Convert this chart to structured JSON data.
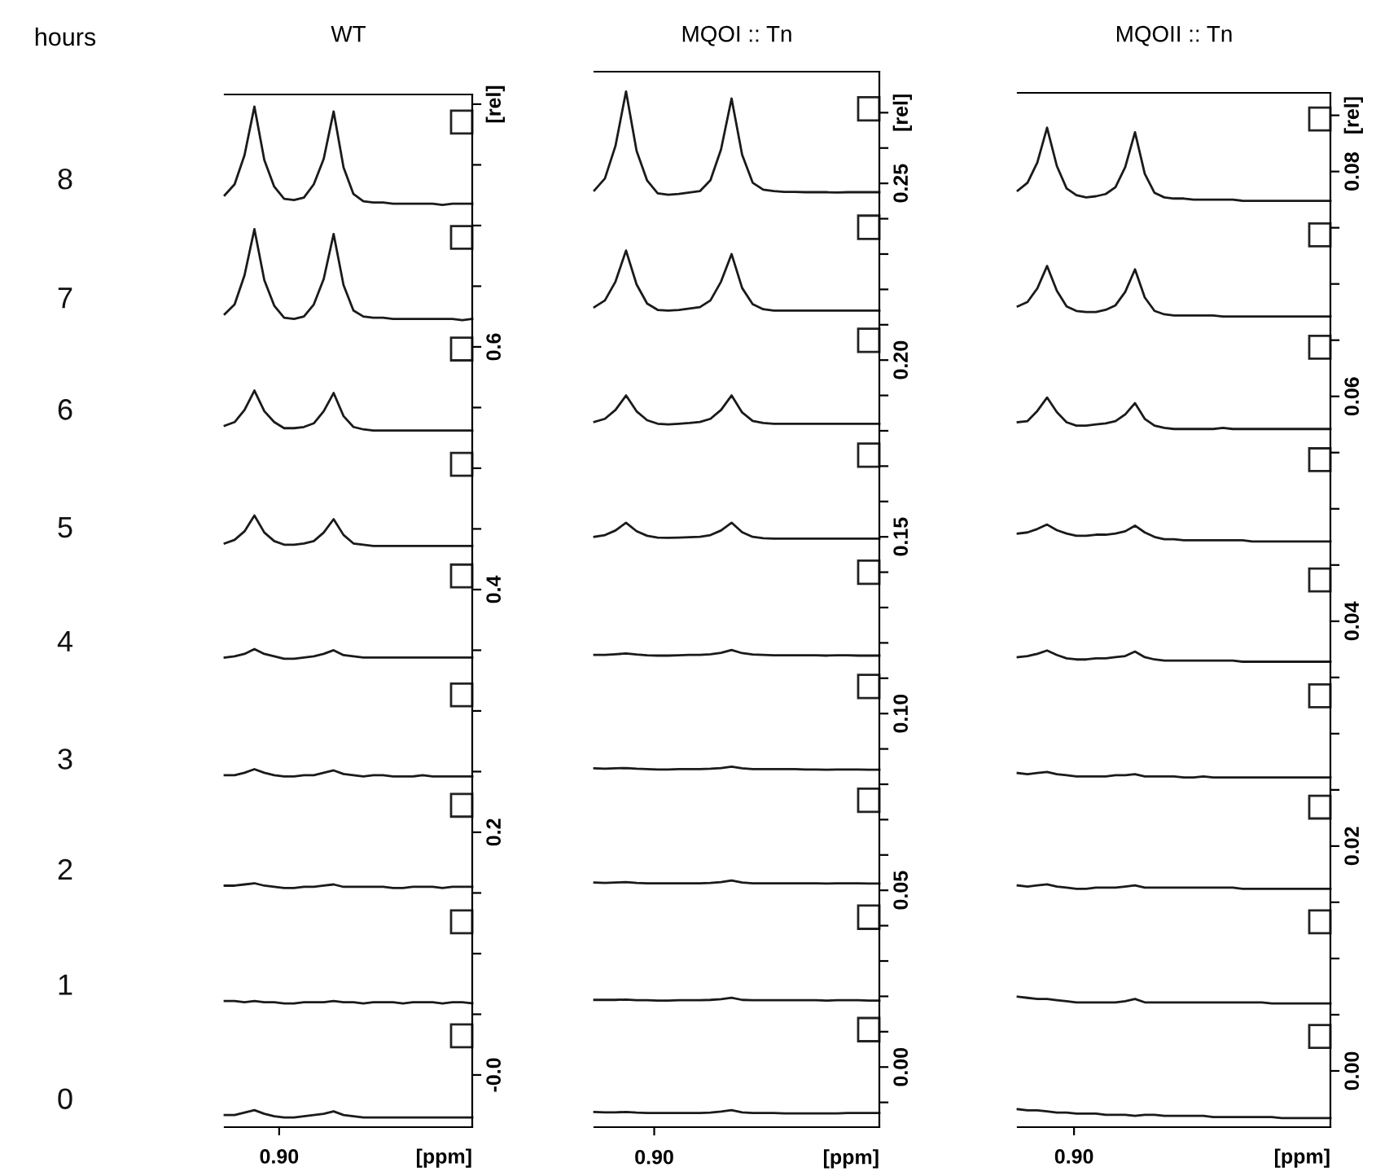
{
  "chart_data": [
    {
      "type": "line",
      "title": "WT",
      "xlabel": "[ppm]",
      "annotations": [
        "hours",
        "0.90",
        "8",
        "7",
        "6",
        "5",
        "4",
        "3",
        "2",
        "1",
        "0"
      ],
      "marker": "none",
      "line_style": "solid",
      "categories": [
        null,
        null,
        null,
        null,
        null,
        null,
        null,
        null,
        null,
        null,
        null,
        null,
        null,
        null,
        null,
        null,
        null,
        null,
        null,
        null,
        null,
        null,
        null,
        null,
        null,
        null
      ],
      "ylim": [
        -0.043,
        0.808
      ],
      "yticks": [
        {
          "value": 0,
          "label": "-0.0"
        },
        {
          "value": 0.05,
          "label": null
        },
        {
          "value": 0.1,
          "label": null
        },
        {
          "value": 0.15,
          "label": null
        },
        {
          "value": 0.2,
          "label": "0.2"
        },
        {
          "value": 0.25,
          "label": null
        },
        {
          "value": 0.3,
          "label": null
        },
        {
          "value": 0.35,
          "label": null
        },
        {
          "value": 0.4,
          "label": "0.4"
        },
        {
          "value": 0.45,
          "label": null
        },
        {
          "value": 0.5,
          "label": null
        },
        {
          "value": 0.55,
          "label": null
        },
        {
          "value": 0.6,
          "label": "0.6"
        },
        {
          "value": 0.65,
          "label": null
        },
        {
          "value": 0.7,
          "label": null
        },
        {
          "value": 0.75,
          "label": null
        },
        {
          "value": 0.8,
          "label": "[rel]"
        }
      ],
      "series": [
        {
          "color": "#1a1a1a",
          "values": [
            0.725,
            0.734,
            0.758,
            0.798,
            0.754,
            0.732,
            0.722,
            0.721,
            0.723,
            0.734,
            0.755,
            0.794,
            0.748,
            0.726,
            0.72,
            0.719,
            0.719,
            0.718,
            0.718,
            0.718,
            0.718,
            0.718,
            0.717,
            0.718,
            0.718,
            0.718
          ]
        },
        {
          "color": "#1a1a1a",
          "values": [
            0.627,
            0.635,
            0.659,
            0.697,
            0.655,
            0.634,
            0.624,
            0.623,
            0.625,
            0.635,
            0.656,
            0.693,
            0.651,
            0.63,
            0.625,
            0.624,
            0.624,
            0.623,
            0.623,
            0.623,
            0.623,
            0.623,
            0.623,
            0.623,
            0.622,
            0.623
          ]
        },
        {
          "color": "#1a1a1a",
          "values": [
            0.535,
            0.538,
            0.548,
            0.564,
            0.547,
            0.538,
            0.533,
            0.533,
            0.534,
            0.537,
            0.547,
            0.562,
            0.543,
            0.534,
            0.532,
            0.531,
            0.531,
            0.531,
            0.531,
            0.531,
            0.531,
            0.531,
            0.531,
            0.531,
            0.531,
            0.531
          ]
        },
        {
          "color": "#1a1a1a",
          "values": [
            0.438,
            0.441,
            0.448,
            0.461,
            0.447,
            0.44,
            0.437,
            0.437,
            0.438,
            0.44,
            0.447,
            0.458,
            0.445,
            0.438,
            0.437,
            0.436,
            0.436,
            0.436,
            0.436,
            0.436,
            0.436,
            0.436,
            0.436,
            0.436,
            0.436,
            0.436
          ]
        },
        {
          "color": "#1a1a1a",
          "values": [
            0.344,
            0.345,
            0.347,
            0.351,
            0.347,
            0.345,
            0.343,
            0.343,
            0.344,
            0.345,
            0.347,
            0.35,
            0.346,
            0.345,
            0.344,
            0.344,
            0.344,
            0.344,
            0.344,
            0.344,
            0.344,
            0.344,
            0.344,
            0.344,
            0.344,
            0.344
          ]
        },
        {
          "color": "#1a1a1a",
          "values": [
            0.247,
            0.247,
            0.249,
            0.252,
            0.249,
            0.247,
            0.246,
            0.246,
            0.247,
            0.247,
            0.249,
            0.251,
            0.248,
            0.247,
            0.246,
            0.247,
            0.247,
            0.246,
            0.246,
            0.246,
            0.247,
            0.246,
            0.246,
            0.246,
            0.246,
            0.246
          ]
        },
        {
          "color": "#1a1a1a",
          "values": [
            0.156,
            0.156,
            0.157,
            0.158,
            0.156,
            0.155,
            0.154,
            0.154,
            0.155,
            0.155,
            0.156,
            0.157,
            0.155,
            0.155,
            0.155,
            0.155,
            0.155,
            0.154,
            0.154,
            0.155,
            0.155,
            0.155,
            0.154,
            0.155,
            0.155,
            0.155
          ]
        },
        {
          "color": "#1a1a1a",
          "values": [
            0.061,
            0.061,
            0.06,
            0.061,
            0.06,
            0.06,
            0.059,
            0.059,
            0.06,
            0.06,
            0.06,
            0.061,
            0.06,
            0.06,
            0.059,
            0.06,
            0.06,
            0.06,
            0.059,
            0.06,
            0.06,
            0.06,
            0.059,
            0.06,
            0.06,
            0.059
          ]
        },
        {
          "color": "#1a1a1a",
          "values": [
            -0.033,
            -0.033,
            -0.031,
            -0.029,
            -0.032,
            -0.034,
            -0.035,
            -0.035,
            -0.034,
            -0.033,
            -0.032,
            -0.03,
            -0.033,
            -0.034,
            -0.035,
            -0.035,
            -0.035,
            -0.035,
            -0.035,
            -0.035,
            -0.035,
            -0.035,
            -0.035,
            -0.035,
            -0.035,
            -0.035
          ]
        }
      ]
    },
    {
      "type": "line",
      "title": "MQOI :: Tn",
      "xlabel": "[ppm]",
      "annotations": [
        "0.90"
      ],
      "marker": "none",
      "line_style": "solid",
      "categories": [
        null,
        null,
        null,
        null,
        null,
        null,
        null,
        null,
        null,
        null,
        null,
        null,
        null,
        null,
        null,
        null,
        null,
        null,
        null,
        null,
        null,
        null,
        null,
        null,
        null,
        null,
        null,
        null
      ],
      "ylim": [
        -0.017,
        0.2816
      ],
      "yticks": [
        {
          "value": -0.01,
          "label": null
        },
        {
          "value": 0.0,
          "label": "0.00"
        },
        {
          "value": 0.01,
          "label": null
        },
        {
          "value": 0.02,
          "label": null
        },
        {
          "value": 0.03,
          "label": null
        },
        {
          "value": 0.04,
          "label": null
        },
        {
          "value": 0.05,
          "label": "0.05"
        },
        {
          "value": 0.06,
          "label": null
        },
        {
          "value": 0.07,
          "label": null
        },
        {
          "value": 0.08,
          "label": null
        },
        {
          "value": 0.09,
          "label": null
        },
        {
          "value": 0.1,
          "label": "0.10"
        },
        {
          "value": 0.11,
          "label": null
        },
        {
          "value": 0.12,
          "label": null
        },
        {
          "value": 0.13,
          "label": null
        },
        {
          "value": 0.14,
          "label": null
        },
        {
          "value": 0.15,
          "label": "0.15"
        },
        {
          "value": 0.16,
          "label": null
        },
        {
          "value": 0.17,
          "label": null
        },
        {
          "value": 0.18,
          "label": null
        },
        {
          "value": 0.19,
          "label": null
        },
        {
          "value": 0.2,
          "label": "0.20"
        },
        {
          "value": 0.21,
          "label": null
        },
        {
          "value": 0.22,
          "label": null
        },
        {
          "value": 0.23,
          "label": null
        },
        {
          "value": 0.24,
          "label": null
        },
        {
          "value": 0.25,
          "label": "0.25"
        },
        {
          "value": 0.26,
          "label": null
        },
        {
          "value": 0.27,
          "label": "[rel]"
        }
      ],
      "series": [
        {
          "color": "#1a1a1a",
          "values": [
            0.248,
            0.2514,
            0.2606,
            0.276,
            0.2592,
            0.2508,
            0.2472,
            0.2468,
            0.247,
            0.2474,
            0.2478,
            0.2509,
            0.2596,
            0.274,
            0.2581,
            0.2502,
            0.2482,
            0.2478,
            0.2476,
            0.2476,
            0.2475,
            0.2475,
            0.2475,
            0.2474,
            0.2475,
            0.2475,
            0.2475,
            0.2475
          ]
        },
        {
          "color": "#1a1a1a",
          "values": [
            0.215,
            0.2169,
            0.2222,
            0.231,
            0.2214,
            0.216,
            0.2142,
            0.214,
            0.2142,
            0.2146,
            0.215,
            0.2169,
            0.2222,
            0.23,
            0.2204,
            0.2158,
            0.2144,
            0.214,
            0.214,
            0.214,
            0.214,
            0.214,
            0.214,
            0.214,
            0.214,
            0.214,
            0.214,
            0.214
          ]
        },
        {
          "color": "#1a1a1a",
          "values": [
            0.1825,
            0.1834,
            0.1859,
            0.19,
            0.1855,
            0.183,
            0.182,
            0.1818,
            0.182,
            0.1822,
            0.1825,
            0.1834,
            0.1859,
            0.19,
            0.1852,
            0.1828,
            0.1822,
            0.182,
            0.182,
            0.182,
            0.182,
            0.182,
            0.182,
            0.182,
            0.182,
            0.182,
            0.182,
            0.182
          ]
        },
        {
          "color": "#1a1a1a",
          "values": [
            0.15,
            0.1505,
            0.1518,
            0.154,
            0.1516,
            0.1503,
            0.1498,
            0.1497,
            0.1498,
            0.1499,
            0.15,
            0.1505,
            0.1518,
            0.154,
            0.1513,
            0.15,
            0.1496,
            0.1495,
            0.1495,
            0.1495,
            0.1495,
            0.1495,
            0.1495,
            0.1495,
            0.1495,
            0.1495,
            0.1495,
            0.1495
          ]
        },
        {
          "color": "#1a1a1a",
          "values": [
            0.1166,
            0.1166,
            0.1168,
            0.117,
            0.1167,
            0.1165,
            0.1164,
            0.1164,
            0.1165,
            0.1166,
            0.1166,
            0.1168,
            0.1172,
            0.118,
            0.1171,
            0.1167,
            0.1166,
            0.1165,
            0.1165,
            0.1165,
            0.1165,
            0.1165,
            0.1164,
            0.1165,
            0.1165,
            0.1164,
            0.1164,
            0.1164
          ]
        },
        {
          "color": "#1a1a1a",
          "values": [
            0.0845,
            0.0844,
            0.0845,
            0.0846,
            0.0844,
            0.0843,
            0.0842,
            0.0842,
            0.0843,
            0.0843,
            0.0843,
            0.0844,
            0.0846,
            0.085,
            0.0845,
            0.0843,
            0.0843,
            0.0843,
            0.0843,
            0.0843,
            0.0842,
            0.0842,
            0.0841,
            0.0842,
            0.0842,
            0.0842,
            0.0841,
            0.0841
          ]
        },
        {
          "color": "#1a1a1a",
          "values": [
            0.0522,
            0.0521,
            0.0522,
            0.0523,
            0.0521,
            0.052,
            0.052,
            0.052,
            0.052,
            0.052,
            0.052,
            0.0521,
            0.0523,
            0.0528,
            0.0522,
            0.052,
            0.052,
            0.052,
            0.052,
            0.052,
            0.052,
            0.052,
            0.0519,
            0.052,
            0.052,
            0.052,
            0.0519,
            0.0519
          ]
        },
        {
          "color": "#1a1a1a",
          "values": [
            0.019,
            0.019,
            0.019,
            0.0191,
            0.0189,
            0.0189,
            0.0188,
            0.0188,
            0.0189,
            0.0189,
            0.0189,
            0.019,
            0.0192,
            0.0196,
            0.019,
            0.0189,
            0.0189,
            0.0189,
            0.0189,
            0.0189,
            0.0189,
            0.0189,
            0.0188,
            0.0189,
            0.0189,
            0.0189,
            0.0188,
            0.0188
          ]
        },
        {
          "color": "#1a1a1a",
          "values": [
            -0.0127,
            -0.0128,
            -0.0128,
            -0.0127,
            -0.0129,
            -0.013,
            -0.013,
            -0.013,
            -0.013,
            -0.013,
            -0.013,
            -0.0129,
            -0.0126,
            -0.0122,
            -0.0128,
            -0.013,
            -0.013,
            -0.013,
            -0.0131,
            -0.0131,
            -0.0131,
            -0.0131,
            -0.0131,
            -0.0131,
            -0.013,
            -0.013,
            -0.013,
            -0.013
          ]
        }
      ]
    },
    {
      "type": "line",
      "title": "MQOII :: Tn",
      "xlabel": "[ppm]",
      "annotations": [
        "0.90"
      ],
      "marker": "none",
      "line_style": "solid",
      "categories": [
        null,
        null,
        null,
        null,
        null,
        null,
        null,
        null,
        null,
        null,
        null,
        null,
        null,
        null,
        null,
        null,
        null,
        null,
        null,
        null,
        null,
        null,
        null,
        null,
        null,
        null,
        null,
        null,
        null,
        null,
        null,
        null,
        null
      ],
      "ylim": [
        -0.005,
        0.087
      ],
      "yticks": [
        {
          "value": 0.0,
          "label": "0.00"
        },
        {
          "value": 0.005,
          "label": null
        },
        {
          "value": 0.01,
          "label": null
        },
        {
          "value": 0.015,
          "label": null
        },
        {
          "value": 0.02,
          "label": "0.02"
        },
        {
          "value": 0.025,
          "label": null
        },
        {
          "value": 0.03,
          "label": null
        },
        {
          "value": 0.035,
          "label": null
        },
        {
          "value": 0.04,
          "label": "0.04"
        },
        {
          "value": 0.045,
          "label": null
        },
        {
          "value": 0.05,
          "label": null
        },
        {
          "value": 0.055,
          "label": null
        },
        {
          "value": 0.06,
          "label": "0.06"
        },
        {
          "value": 0.065,
          "label": null
        },
        {
          "value": 0.07,
          "label": null
        },
        {
          "value": 0.075,
          "label": null
        },
        {
          "value": 0.08,
          "label": "0.08"
        },
        {
          "value": 0.085,
          "label": "[rel]"
        }
      ],
      "series": [
        {
          "color": "#1a1a1a",
          "values": [
            0.0783,
            0.079,
            0.0808,
            0.0839,
            0.0805,
            0.0785,
            0.0779,
            0.0777,
            0.0778,
            0.078,
            0.0786,
            0.0804,
            0.0835,
            0.0798,
            0.0781,
            0.0777,
            0.0776,
            0.0776,
            0.0775,
            0.0775,
            0.0775,
            0.0775,
            0.0775,
            0.0774,
            0.0774,
            0.0774,
            0.0774,
            0.0774,
            0.0774,
            0.0774,
            0.0774,
            0.0774,
            0.0774
          ]
        },
        {
          "color": "#1a1a1a",
          "values": [
            0.068,
            0.0684,
            0.0696,
            0.0716,
            0.0694,
            0.068,
            0.0676,
            0.0675,
            0.0675,
            0.0677,
            0.0681,
            0.0693,
            0.0713,
            0.0688,
            0.0676,
            0.0673,
            0.0672,
            0.0672,
            0.0672,
            0.0672,
            0.0672,
            0.0671,
            0.0671,
            0.0671,
            0.0671,
            0.0671,
            0.0671,
            0.0671,
            0.0671,
            0.0671,
            0.0671,
            0.0671,
            0.0671
          ]
        },
        {
          "color": "#1a1a1a",
          "values": [
            0.0577,
            0.0578,
            0.0587,
            0.0599,
            0.0586,
            0.0577,
            0.0574,
            0.0574,
            0.0575,
            0.0576,
            0.0578,
            0.0584,
            0.0594,
            0.058,
            0.0574,
            0.0572,
            0.0571,
            0.0571,
            0.0571,
            0.0571,
            0.0571,
            0.0572,
            0.0571,
            0.0571,
            0.0571,
            0.0571,
            0.0571,
            0.0571,
            0.0571,
            0.0571,
            0.0571,
            0.0571,
            0.0571
          ]
        },
        {
          "color": "#1a1a1a",
          "values": [
            0.0478,
            0.0479,
            0.0482,
            0.0486,
            0.0481,
            0.0478,
            0.0476,
            0.0476,
            0.0477,
            0.0477,
            0.0478,
            0.048,
            0.0485,
            0.0479,
            0.0475,
            0.0473,
            0.0473,
            0.0472,
            0.0472,
            0.0472,
            0.0472,
            0.0472,
            0.0472,
            0.0472,
            0.0471,
            0.0471,
            0.0471,
            0.0471,
            0.0471,
            0.0471,
            0.0471,
            0.0471,
            0.0471
          ]
        },
        {
          "color": "#1a1a1a",
          "values": [
            0.0368,
            0.0369,
            0.0371,
            0.0374,
            0.037,
            0.0367,
            0.0366,
            0.0366,
            0.0367,
            0.0367,
            0.0368,
            0.0369,
            0.0373,
            0.0368,
            0.0366,
            0.0365,
            0.0365,
            0.0365,
            0.0365,
            0.0365,
            0.0365,
            0.0365,
            0.0365,
            0.0364,
            0.0364,
            0.0364,
            0.0364,
            0.0364,
            0.0364,
            0.0364,
            0.0364,
            0.0364,
            0.0364
          ]
        },
        {
          "color": "#1a1a1a",
          "values": [
            0.0265,
            0.0264,
            0.0265,
            0.0266,
            0.0264,
            0.0263,
            0.0262,
            0.0262,
            0.0262,
            0.0262,
            0.0263,
            0.0263,
            0.0264,
            0.0262,
            0.0262,
            0.0262,
            0.0262,
            0.0261,
            0.0261,
            0.0262,
            0.0261,
            0.0261,
            0.0261,
            0.0261,
            0.0261,
            0.0261,
            0.0261,
            0.0261,
            0.0261,
            0.0261,
            0.0261,
            0.0261,
            0.0261
          ]
        },
        {
          "color": "#1a1a1a",
          "values": [
            0.0165,
            0.0164,
            0.0165,
            0.0166,
            0.0164,
            0.0163,
            0.0162,
            0.0162,
            0.0163,
            0.0163,
            0.0163,
            0.0164,
            0.0165,
            0.0163,
            0.0163,
            0.0163,
            0.0163,
            0.0163,
            0.0163,
            0.0163,
            0.0163,
            0.0163,
            0.0163,
            0.0162,
            0.0162,
            0.0162,
            0.0162,
            0.0162,
            0.0162,
            0.0162,
            0.0162,
            0.0162,
            0.0162
          ]
        },
        {
          "color": "#1a1a1a",
          "values": [
            0.0066,
            0.0065,
            0.0064,
            0.0064,
            0.0063,
            0.0062,
            0.0061,
            0.0061,
            0.0061,
            0.0061,
            0.0061,
            0.0062,
            0.0064,
            0.0061,
            0.0061,
            0.0061,
            0.0061,
            0.0061,
            0.0061,
            0.0061,
            0.0061,
            0.0061,
            0.0061,
            0.0061,
            0.0061,
            0.0061,
            0.006,
            0.006,
            0.006,
            0.006,
            0.006,
            0.006,
            0.006
          ]
        },
        {
          "color": "#1a1a1a",
          "values": [
            -0.0034,
            -0.0035,
            -0.0035,
            -0.0036,
            -0.0037,
            -0.0037,
            -0.0038,
            -0.0038,
            -0.0038,
            -0.0039,
            -0.0039,
            -0.0039,
            -0.004,
            -0.0039,
            -0.0039,
            -0.004,
            -0.004,
            -0.004,
            -0.004,
            -0.004,
            -0.0041,
            -0.0041,
            -0.0041,
            -0.0041,
            -0.0041,
            -0.0041,
            -0.0041,
            -0.0042,
            -0.0042,
            -0.0042,
            -0.0042,
            -0.0042,
            -0.0042
          ]
        }
      ]
    }
  ]
}
